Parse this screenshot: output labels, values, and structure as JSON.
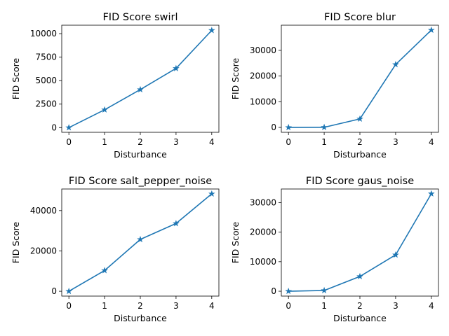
{
  "chart_data": [
    {
      "type": "line",
      "title": "FID Score swirl",
      "xlabel": "Disturbance",
      "ylabel": "FID Score",
      "x": [
        0,
        1,
        2,
        3,
        4
      ],
      "series": [
        {
          "values": [
            0,
            1900,
            4050,
            6300,
            10350
          ]
        }
      ],
      "xlim": [
        -0.2,
        4.2
      ],
      "ylim": [
        -500,
        10900
      ],
      "xticks": [
        0,
        1,
        2,
        3,
        4
      ],
      "yticks": [
        0,
        2500,
        5000,
        7500,
        10000
      ],
      "yticklabels": [
        "0",
        "2500",
        "5000",
        "7500",
        "10000"
      ],
      "marker": "star",
      "color": "#1f77b4",
      "grid": false
    },
    {
      "type": "line",
      "title": "FID Score blur",
      "xlabel": "Disturbance",
      "ylabel": "FID Score",
      "x": [
        0,
        1,
        2,
        3,
        4
      ],
      "series": [
        {
          "values": [
            0,
            50,
            3300,
            24500,
            37900
          ]
        }
      ],
      "xlim": [
        -0.2,
        4.2
      ],
      "ylim": [
        -1900,
        39800
      ],
      "xticks": [
        0,
        1,
        2,
        3,
        4
      ],
      "yticks": [
        0,
        10000,
        20000,
        30000
      ],
      "yticklabels": [
        "0",
        "10000",
        "20000",
        "30000"
      ],
      "marker": "star",
      "color": "#1f77b4",
      "grid": false
    },
    {
      "type": "line",
      "title": "FID Score salt_pepper_noise",
      "xlabel": "Disturbance",
      "ylabel": "FID Score",
      "x": [
        0,
        1,
        2,
        3,
        4
      ],
      "series": [
        {
          "values": [
            0,
            10300,
            25700,
            33600,
            48300
          ]
        }
      ],
      "xlim": [
        -0.2,
        4.2
      ],
      "ylim": [
        -2400,
        50700
      ],
      "xticks": [
        0,
        1,
        2,
        3,
        4
      ],
      "yticks": [
        0,
        20000,
        40000
      ],
      "yticklabels": [
        "0",
        "20000",
        "40000"
      ],
      "marker": "star",
      "color": "#1f77b4",
      "grid": false
    },
    {
      "type": "line",
      "title": "FID Score gaus_noise",
      "xlabel": "Disturbance",
      "ylabel": "FID Score",
      "x": [
        0,
        1,
        2,
        3,
        4
      ],
      "series": [
        {
          "values": [
            0,
            250,
            5000,
            12300,
            33000
          ]
        }
      ],
      "xlim": [
        -0.2,
        4.2
      ],
      "ylim": [
        -1650,
        34600
      ],
      "xticks": [
        0,
        1,
        2,
        3,
        4
      ],
      "yticks": [
        0,
        10000,
        20000,
        30000
      ],
      "yticklabels": [
        "0",
        "10000",
        "20000",
        "30000"
      ],
      "marker": "star",
      "color": "#1f77b4",
      "grid": false
    }
  ]
}
